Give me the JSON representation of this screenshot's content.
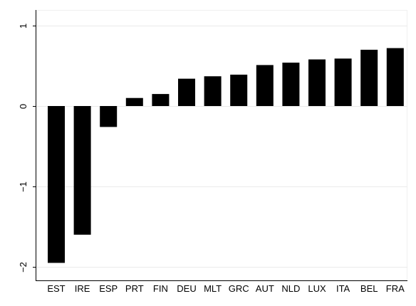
{
  "chart_data": {
    "type": "bar",
    "categories": [
      "EST",
      "IRE",
      "ESP",
      "PRT",
      "FIN",
      "DEU",
      "MLT",
      "GRC",
      "AUT",
      "NLD",
      "LUX",
      "ITA",
      "BEL",
      "FRA"
    ],
    "values": [
      -1.95,
      -1.6,
      -0.26,
      0.1,
      0.15,
      0.34,
      0.37,
      0.39,
      0.51,
      0.54,
      0.58,
      0.59,
      0.7,
      0.72
    ],
    "yticks": [
      1,
      0,
      -1,
      -2
    ],
    "ytick_labels": [
      "1",
      "0",
      "−1",
      "−2"
    ],
    "ylim": [
      -2.07,
      1.1
    ],
    "bar_color": "#000000",
    "grid_color": "#eaeaea",
    "grid": true,
    "title": "",
    "xlabel": "",
    "ylabel": ""
  }
}
